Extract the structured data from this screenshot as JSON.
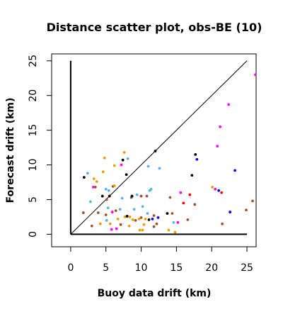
{
  "chart_data": {
    "type": "scatter",
    "title": "Distance scatter plot, obs-BE (10)",
    "xlabel": "Buoy data drift (km)",
    "ylabel": "Forecast drift (km)",
    "xlim": [
      -2.7,
      26.3
    ],
    "ylim": [
      -1.8,
      26.0
    ],
    "xticks": [
      0,
      5,
      10,
      15,
      20,
      25
    ],
    "yticks": [
      0,
      5,
      10,
      15,
      20,
      25
    ],
    "grid": false,
    "reference_line": {
      "x": [
        0,
        25
      ],
      "y": [
        0,
        25
      ]
    },
    "axes_lines": {
      "x_axis": {
        "x": [
          0,
          25
        ],
        "y": [
          0,
          0
        ]
      },
      "y_axis": {
        "x": [
          0,
          0
        ],
        "y": [
          0,
          25
        ]
      }
    },
    "colors": {
      "black": "#000000",
      "orange": "#e69f00",
      "skyblue": "#56b4e9",
      "magenta": "#ff00ff",
      "brown": "#a0522d",
      "blue": "#0000ff",
      "red": "#ff0000"
    },
    "points": [
      {
        "x": 1.8,
        "y": 3.1,
        "c": "brown"
      },
      {
        "x": 1.9,
        "y": 8.2,
        "c": "black"
      },
      {
        "x": 2.4,
        "y": 8.8,
        "c": "skyblue"
      },
      {
        "x": 2.8,
        "y": 4.7,
        "c": "skyblue"
      },
      {
        "x": 3.0,
        "y": 1.2,
        "c": "brown"
      },
      {
        "x": 3.2,
        "y": 6.8,
        "c": "magenta"
      },
      {
        "x": 3.3,
        "y": 8.0,
        "c": "orange"
      },
      {
        "x": 3.5,
        "y": 6.8,
        "c": "brown"
      },
      {
        "x": 3.7,
        "y": 7.6,
        "c": "orange"
      },
      {
        "x": 3.9,
        "y": 3.1,
        "c": "brown"
      },
      {
        "x": 4.2,
        "y": 1.5,
        "c": "orange"
      },
      {
        "x": 4.5,
        "y": 5.5,
        "c": "black"
      },
      {
        "x": 4.6,
        "y": 9.0,
        "c": "orange"
      },
      {
        "x": 4.8,
        "y": 11.0,
        "c": "orange"
      },
      {
        "x": 5.0,
        "y": 2.8,
        "c": "brown"
      },
      {
        "x": 5.0,
        "y": 6.5,
        "c": "skyblue"
      },
      {
        "x": 5.1,
        "y": 5.0,
        "c": "brown"
      },
      {
        "x": 5.1,
        "y": 2.0,
        "c": "skyblue"
      },
      {
        "x": 5.3,
        "y": 3.8,
        "c": "skyblue"
      },
      {
        "x": 5.4,
        "y": 6.3,
        "c": "skyblue"
      },
      {
        "x": 5.5,
        "y": 5.5,
        "c": "black"
      },
      {
        "x": 5.6,
        "y": 1.5,
        "c": "orange"
      },
      {
        "x": 5.8,
        "y": 0.7,
        "c": "magenta"
      },
      {
        "x": 5.9,
        "y": 3.2,
        "c": "magenta"
      },
      {
        "x": 6.0,
        "y": 6.9,
        "c": "brown"
      },
      {
        "x": 6.2,
        "y": 7.0,
        "c": "orange"
      },
      {
        "x": 6.2,
        "y": 9.9,
        "c": "orange"
      },
      {
        "x": 6.4,
        "y": 3.4,
        "c": "brown"
      },
      {
        "x": 6.5,
        "y": 0.8,
        "c": "magenta"
      },
      {
        "x": 6.7,
        "y": 2.2,
        "c": "orange"
      },
      {
        "x": 7.0,
        "y": 3.6,
        "c": "skyblue"
      },
      {
        "x": 7.1,
        "y": 1.4,
        "c": "brown"
      },
      {
        "x": 7.2,
        "y": 10.0,
        "c": "magenta"
      },
      {
        "x": 7.3,
        "y": 5.2,
        "c": "skyblue"
      },
      {
        "x": 7.4,
        "y": 10.7,
        "c": "black"
      },
      {
        "x": 7.6,
        "y": 11.8,
        "c": "orange"
      },
      {
        "x": 7.7,
        "y": 2.5,
        "c": "orange"
      },
      {
        "x": 7.9,
        "y": 8.6,
        "c": "black"
      },
      {
        "x": 8.0,
        "y": 2.6,
        "c": "black"
      },
      {
        "x": 8.1,
        "y": 10.9,
        "c": "skyblue"
      },
      {
        "x": 8.3,
        "y": 1.2,
        "c": "orange"
      },
      {
        "x": 8.4,
        "y": 2.5,
        "c": "orange"
      },
      {
        "x": 8.6,
        "y": 5.3,
        "c": "brown"
      },
      {
        "x": 8.7,
        "y": 5.5,
        "c": "black"
      },
      {
        "x": 8.8,
        "y": 2.1,
        "c": "orange"
      },
      {
        "x": 9.0,
        "y": 3.6,
        "c": "skyblue"
      },
      {
        "x": 9.2,
        "y": 2.0,
        "c": "brown"
      },
      {
        "x": 9.4,
        "y": 5.7,
        "c": "skyblue"
      },
      {
        "x": 9.7,
        "y": 2.2,
        "c": "orange"
      },
      {
        "x": 9.8,
        "y": 0.6,
        "c": "orange"
      },
      {
        "x": 10.0,
        "y": 5.5,
        "c": "brown"
      },
      {
        "x": 10.0,
        "y": 2.4,
        "c": "brown"
      },
      {
        "x": 10.2,
        "y": 0.6,
        "c": "orange"
      },
      {
        "x": 10.2,
        "y": 4.0,
        "c": "skyblue"
      },
      {
        "x": 10.4,
        "y": 1.4,
        "c": "orange"
      },
      {
        "x": 10.6,
        "y": 2.2,
        "c": "orange"
      },
      {
        "x": 10.8,
        "y": 5.5,
        "c": "brown"
      },
      {
        "x": 10.9,
        "y": 3.0,
        "c": "skyblue"
      },
      {
        "x": 11.0,
        "y": 9.8,
        "c": "skyblue"
      },
      {
        "x": 11.1,
        "y": 2.1,
        "c": "black"
      },
      {
        "x": 11.2,
        "y": 6.3,
        "c": "skyblue"
      },
      {
        "x": 11.4,
        "y": 6.5,
        "c": "skyblue"
      },
      {
        "x": 11.6,
        "y": 2.2,
        "c": "blue"
      },
      {
        "x": 11.8,
        "y": 1.1,
        "c": "brown"
      },
      {
        "x": 11.8,
        "y": 2.7,
        "c": "brown"
      },
      {
        "x": 12.0,
        "y": 12.0,
        "c": "black"
      },
      {
        "x": 12.2,
        "y": 1.5,
        "c": "brown"
      },
      {
        "x": 12.4,
        "y": 2.4,
        "c": "blue"
      },
      {
        "x": 12.6,
        "y": 9.5,
        "c": "skyblue"
      },
      {
        "x": 13.7,
        "y": 3.0,
        "c": "black"
      },
      {
        "x": 13.9,
        "y": 0.6,
        "c": "orange"
      },
      {
        "x": 14.1,
        "y": 5.3,
        "c": "brown"
      },
      {
        "x": 14.4,
        "y": 3.0,
        "c": "brown"
      },
      {
        "x": 14.6,
        "y": 1.7,
        "c": "skyblue"
      },
      {
        "x": 14.8,
        "y": 0.3,
        "c": "orange"
      },
      {
        "x": 15.2,
        "y": 1.7,
        "c": "magenta"
      },
      {
        "x": 15.6,
        "y": 6.0,
        "c": "magenta"
      },
      {
        "x": 16.0,
        "y": 4.5,
        "c": "red"
      },
      {
        "x": 16.6,
        "y": 2.1,
        "c": "brown"
      },
      {
        "x": 16.9,
        "y": 5.7,
        "c": "red"
      },
      {
        "x": 17.2,
        "y": 8.5,
        "c": "black"
      },
      {
        "x": 17.6,
        "y": 4.3,
        "c": "brown"
      },
      {
        "x": 17.7,
        "y": 11.5,
        "c": "black"
      },
      {
        "x": 17.9,
        "y": 10.8,
        "c": "blue"
      },
      {
        "x": 20.1,
        "y": 6.8,
        "c": "orange"
      },
      {
        "x": 20.5,
        "y": 6.5,
        "c": "magenta"
      },
      {
        "x": 20.8,
        "y": 12.7,
        "c": "magenta"
      },
      {
        "x": 21.0,
        "y": 6.3,
        "c": "blue"
      },
      {
        "x": 21.2,
        "y": 15.5,
        "c": "magenta"
      },
      {
        "x": 21.4,
        "y": 6.0,
        "c": "red"
      },
      {
        "x": 21.5,
        "y": 1.5,
        "c": "brown"
      },
      {
        "x": 22.4,
        "y": 18.7,
        "c": "magenta"
      },
      {
        "x": 22.6,
        "y": 3.2,
        "c": "blue"
      },
      {
        "x": 23.3,
        "y": 9.2,
        "c": "blue"
      },
      {
        "x": 24.9,
        "y": 3.5,
        "c": "brown"
      },
      {
        "x": 25.8,
        "y": 4.8,
        "c": "brown"
      },
      {
        "x": 26.2,
        "y": 23.0,
        "c": "magenta"
      }
    ]
  }
}
